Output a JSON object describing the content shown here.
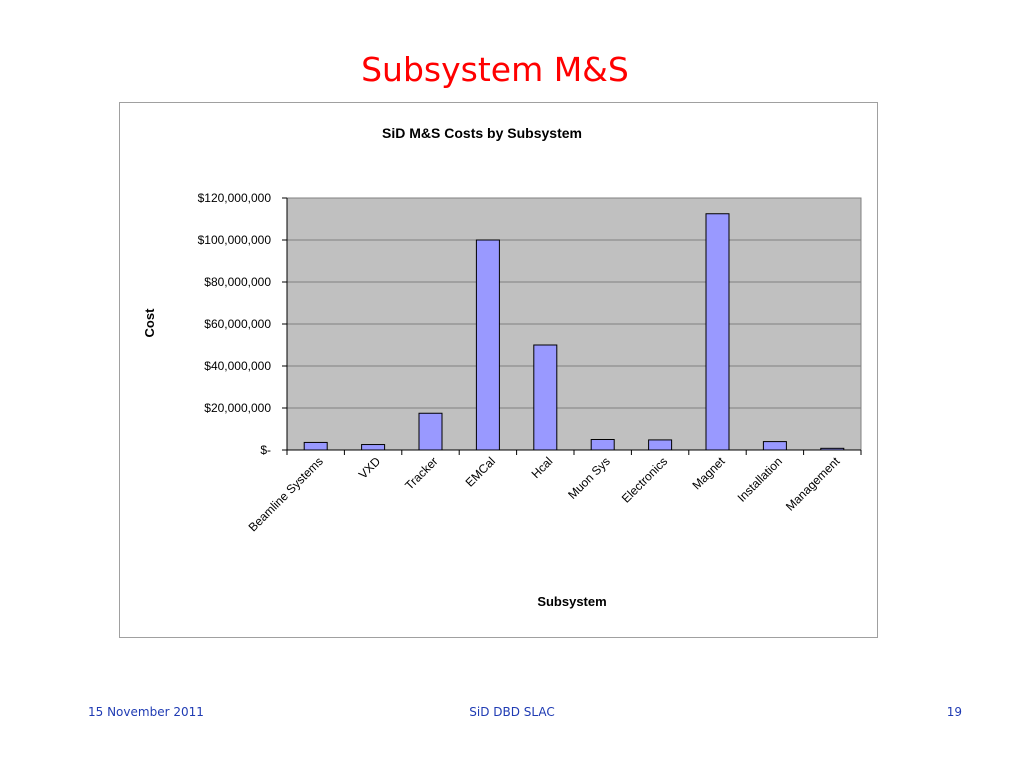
{
  "slide": {
    "title": "Subsystem M&S",
    "footer_left": "15 November 2011",
    "footer_center": "SiD  DBD SLAC",
    "footer_right": "19"
  },
  "colors": {
    "title": "#ff0000",
    "bar_fill": "#9999ff",
    "plot_bg": "#c0c0c0",
    "footer": "#1f3bb3"
  },
  "chart_data": {
    "type": "bar",
    "title": "SiD M&S Costs by Subsystem",
    "xlabel": "Subsystem",
    "ylabel": "Cost",
    "categories": [
      "Beamline Systems",
      "VXD",
      "Tracker",
      "EMCal",
      "Hcal",
      "Muon Sys",
      "Electronics",
      "Magnet",
      "Installation",
      "Management"
    ],
    "values": [
      3600000,
      2600000,
      17500000,
      100000000,
      50000000,
      5000000,
      4800000,
      112500000,
      4000000,
      800000
    ],
    "ylim": [
      0,
      120000000
    ],
    "yticks": [
      0,
      20000000,
      40000000,
      60000000,
      80000000,
      100000000,
      120000000
    ],
    "ytick_labels": [
      "$-",
      "$20,000,000",
      "$40,000,000",
      "$60,000,000",
      "$80,000,000",
      "$100,000,000",
      "$120,000,000"
    ],
    "grid": true,
    "legend": "none"
  }
}
